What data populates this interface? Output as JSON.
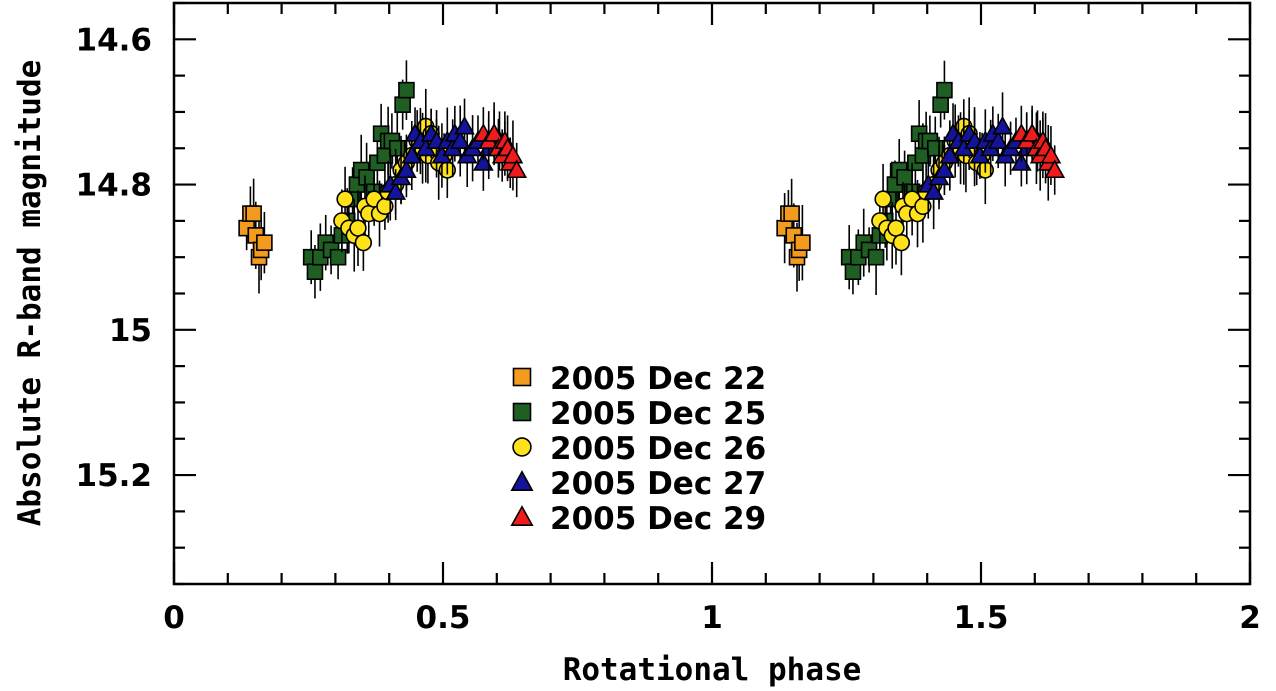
{
  "chart_data": {
    "type": "scatter",
    "title": "",
    "xlabel": "Rotational phase",
    "ylabel": "Absolute R-band magnitude",
    "xlim": [
      0,
      2
    ],
    "ylim": [
      15.35,
      14.55
    ],
    "y_axis_inverted": true,
    "grid": false,
    "legend_position": "center-left",
    "x_ticks": [
      "0",
      "0.5",
      "1",
      "1.5",
      "2"
    ],
    "y_ticks": [
      "14.6",
      "14.8",
      "15",
      "15.2"
    ],
    "series": [
      {
        "name": "2005 Dec 22",
        "marker": "square",
        "color": "#f39b1f",
        "points": [
          [
            0.135,
            14.86
          ],
          [
            0.142,
            14.84
          ],
          [
            0.148,
            14.84
          ],
          [
            0.152,
            14.87
          ],
          [
            0.158,
            14.9
          ],
          [
            0.162,
            14.89
          ],
          [
            0.168,
            14.88
          ]
        ]
      },
      {
        "name": "2005 Dec 25",
        "marker": "square",
        "color": "#1f5f24",
        "points": [
          [
            0.255,
            14.9
          ],
          [
            0.262,
            14.92
          ],
          [
            0.272,
            14.9
          ],
          [
            0.282,
            14.88
          ],
          [
            0.292,
            14.89
          ],
          [
            0.305,
            14.9
          ],
          [
            0.312,
            14.87
          ],
          [
            0.322,
            14.85
          ],
          [
            0.332,
            14.82
          ],
          [
            0.34,
            14.8
          ],
          [
            0.348,
            14.78
          ],
          [
            0.358,
            14.79
          ],
          [
            0.372,
            14.81
          ],
          [
            0.378,
            14.77
          ],
          [
            0.385,
            14.73
          ],
          [
            0.392,
            14.76
          ],
          [
            0.398,
            14.74
          ],
          [
            0.405,
            14.74
          ],
          [
            0.415,
            14.75
          ],
          [
            0.425,
            14.69
          ],
          [
            0.432,
            14.67
          ]
        ]
      },
      {
        "name": "2005 Dec 26",
        "marker": "circle",
        "color": "#ffe21a",
        "points": [
          [
            0.312,
            14.85
          ],
          [
            0.318,
            14.82
          ],
          [
            0.325,
            14.86
          ],
          [
            0.335,
            14.87
          ],
          [
            0.342,
            14.86
          ],
          [
            0.352,
            14.88
          ],
          [
            0.355,
            14.83
          ],
          [
            0.362,
            14.84
          ],
          [
            0.372,
            14.82
          ],
          [
            0.382,
            14.84
          ],
          [
            0.392,
            14.83
          ],
          [
            0.398,
            14.81
          ],
          [
            0.412,
            14.8
          ],
          [
            0.422,
            14.78
          ],
          [
            0.432,
            14.77
          ],
          [
            0.442,
            14.76
          ],
          [
            0.452,
            14.74
          ],
          [
            0.462,
            14.75
          ],
          [
            0.468,
            14.72
          ],
          [
            0.472,
            14.76
          ],
          [
            0.478,
            14.73
          ],
          [
            0.488,
            14.75
          ],
          [
            0.492,
            14.77
          ],
          [
            0.502,
            14.76
          ],
          [
            0.508,
            14.78
          ]
        ]
      },
      {
        "name": "2005 Dec 27",
        "marker": "triangle",
        "color": "#14149a",
        "points": [
          [
            0.402,
            14.8
          ],
          [
            0.412,
            14.81
          ],
          [
            0.422,
            14.79
          ],
          [
            0.432,
            14.78
          ],
          [
            0.442,
            14.76
          ],
          [
            0.448,
            14.73
          ],
          [
            0.458,
            14.74
          ],
          [
            0.468,
            14.75
          ],
          [
            0.478,
            14.73
          ],
          [
            0.488,
            14.74
          ],
          [
            0.498,
            14.76
          ],
          [
            0.508,
            14.74
          ],
          [
            0.518,
            14.75
          ],
          [
            0.522,
            14.73
          ],
          [
            0.532,
            14.74
          ],
          [
            0.54,
            14.72
          ],
          [
            0.545,
            14.76
          ],
          [
            0.555,
            14.75
          ],
          [
            0.565,
            14.74
          ],
          [
            0.575,
            14.77
          ],
          [
            0.585,
            14.75
          ],
          [
            0.595,
            14.73
          ],
          [
            0.605,
            14.74
          ],
          [
            0.615,
            14.75
          ]
        ]
      },
      {
        "name": "2005 Dec 29",
        "marker": "triangle",
        "color": "#ee1c1c",
        "points": [
          [
            0.575,
            14.73
          ],
          [
            0.585,
            14.74
          ],
          [
            0.595,
            14.73
          ],
          [
            0.603,
            14.75
          ],
          [
            0.61,
            14.76
          ],
          [
            0.615,
            14.74
          ],
          [
            0.62,
            14.75
          ],
          [
            0.625,
            14.77
          ],
          [
            0.63,
            14.76
          ],
          [
            0.637,
            14.78
          ]
        ]
      }
    ]
  }
}
